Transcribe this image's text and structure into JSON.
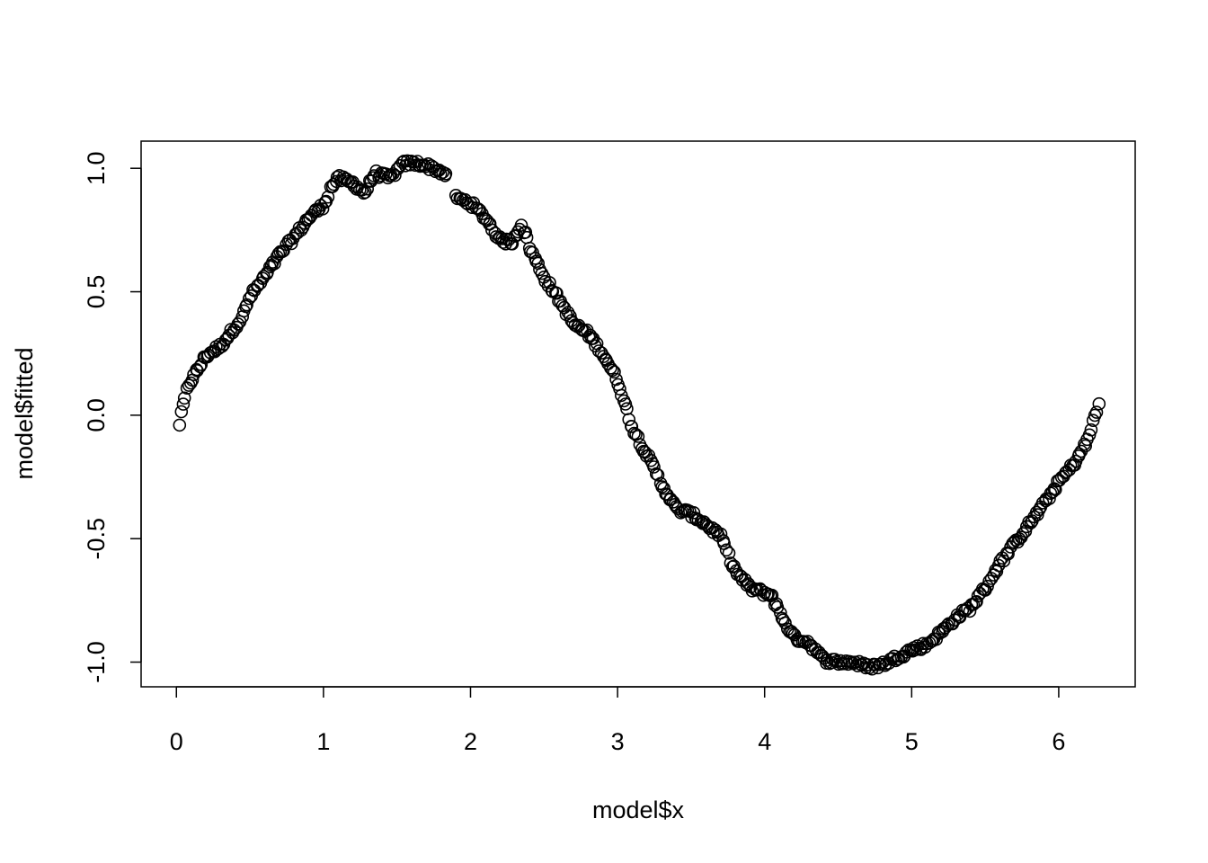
{
  "chart_data": {
    "type": "scatter",
    "title": "",
    "xlabel": "model$x",
    "ylabel": "model$fitted",
    "xlim": [
      -0.24,
      6.52
    ],
    "ylim": [
      -1.1,
      1.11
    ],
    "x_ticks": [
      0,
      1,
      2,
      3,
      4,
      5,
      6
    ],
    "x_tick_labels": [
      "0",
      "1",
      "2",
      "3",
      "4",
      "5",
      "6"
    ],
    "y_ticks": [
      -1.0,
      -0.5,
      0.0,
      0.5,
      1.0
    ],
    "y_tick_labels": [
      "-1.0",
      "-0.5",
      "0.0",
      "0.5",
      "1.0"
    ],
    "grid": false,
    "legend": "none",
    "marker": "open-circle",
    "series": [
      {
        "anchors_x": [
          0.02,
          0.05,
          0.08,
          0.12,
          0.2,
          0.3,
          0.45,
          0.5,
          0.6,
          0.7,
          0.8,
          0.9,
          1.0,
          1.05,
          1.1,
          1.2,
          1.28,
          1.35,
          1.45,
          1.55,
          1.65,
          1.75,
          1.82,
          1.9,
          2.0,
          2.1,
          2.2,
          2.28,
          2.35,
          2.4,
          2.5,
          2.6,
          2.7,
          2.8,
          2.9,
          3.0,
          3.1,
          3.2,
          3.3,
          3.4,
          3.5,
          3.6,
          3.7,
          3.8,
          3.9,
          4.0,
          4.05,
          4.1,
          4.2,
          4.3,
          4.4,
          4.5,
          4.6,
          4.7,
          4.8,
          4.9,
          5.0,
          5.1,
          5.2,
          5.3,
          5.4,
          5.5,
          5.6,
          5.7,
          5.8,
          5.9,
          6.0,
          6.1,
          6.2,
          6.27
        ],
        "anchors_y": [
          -0.04,
          0.05,
          0.12,
          0.16,
          0.24,
          0.28,
          0.4,
          0.48,
          0.56,
          0.65,
          0.72,
          0.8,
          0.85,
          0.92,
          0.96,
          0.94,
          0.9,
          0.98,
          0.96,
          1.02,
          1.02,
          1.0,
          0.98,
          0.88,
          0.86,
          0.8,
          0.71,
          0.7,
          0.78,
          0.68,
          0.56,
          0.47,
          0.37,
          0.33,
          0.25,
          0.14,
          -0.05,
          -0.16,
          -0.28,
          -0.38,
          -0.4,
          -0.44,
          -0.49,
          -0.63,
          -0.7,
          -0.72,
          -0.73,
          -0.8,
          -0.9,
          -0.92,
          -0.99,
          -1.0,
          -1.0,
          -1.02,
          -1.01,
          -0.98,
          -0.95,
          -0.93,
          -0.88,
          -0.82,
          -0.78,
          -0.7,
          -0.6,
          -0.52,
          -0.44,
          -0.36,
          -0.27,
          -0.2,
          -0.1,
          0.05
        ],
        "n_points": 500
      }
    ]
  }
}
